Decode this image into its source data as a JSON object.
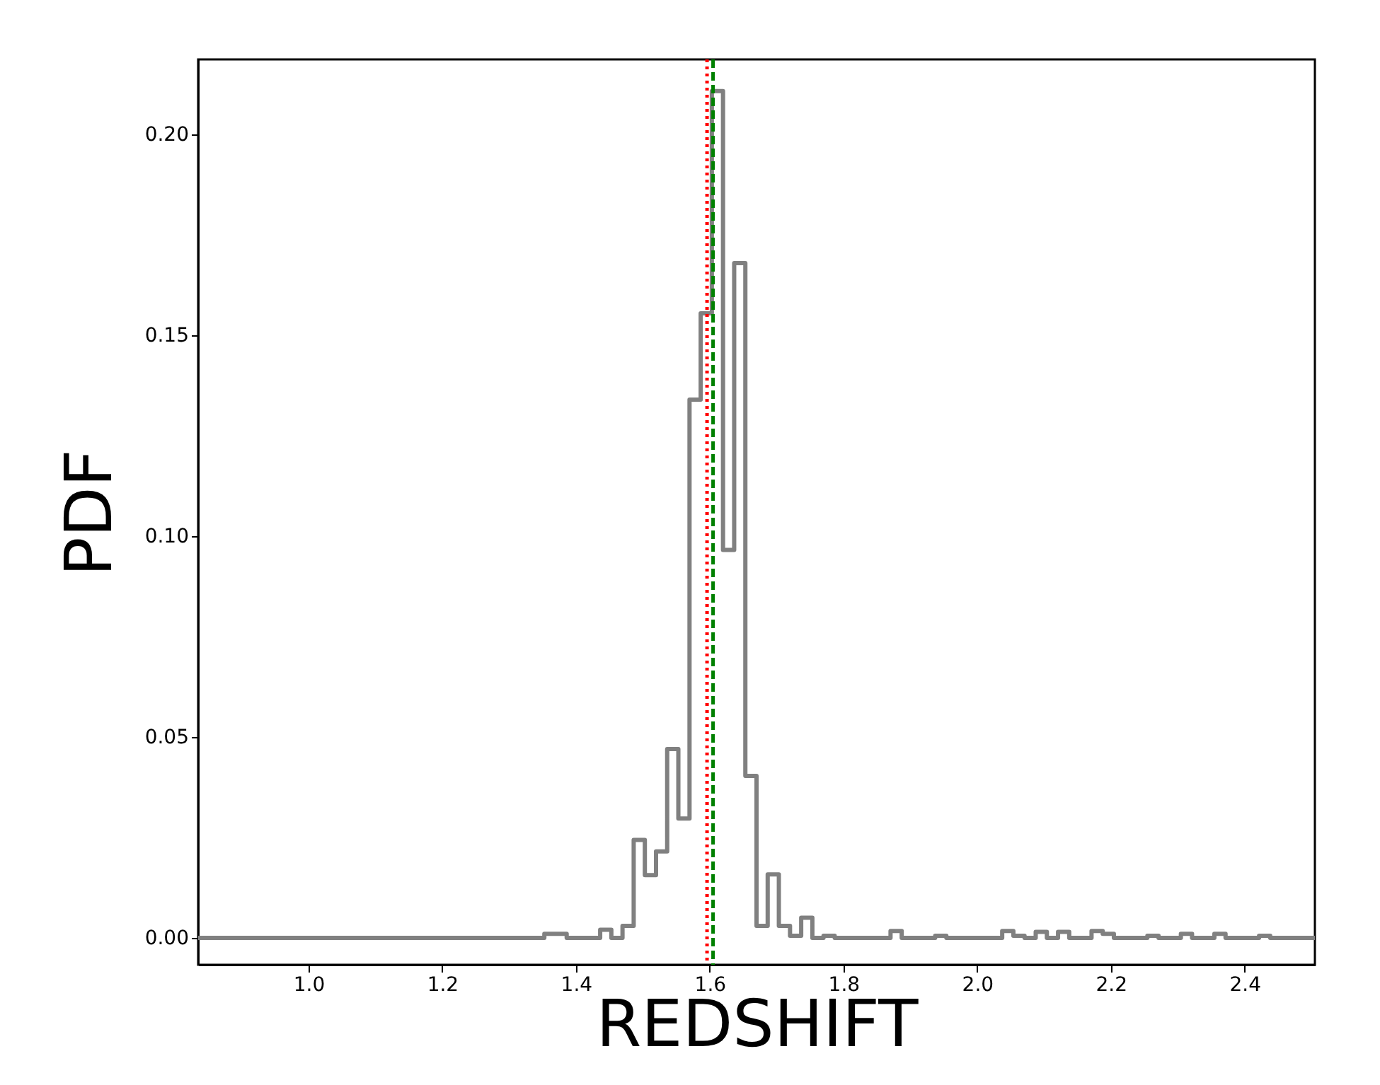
{
  "chart_data": {
    "type": "histogram",
    "xlabel": "REDSHIFT",
    "ylabel": "PDF",
    "line_style": "solid",
    "grid": false,
    "bins": [
      0.835,
      0.8517,
      0.8684,
      0.8851,
      0.9018,
      0.9185,
      0.9352,
      0.9519,
      0.9686,
      0.9853,
      1.002,
      1.0187,
      1.0354,
      1.0521,
      1.0688,
      1.0855,
      1.1022,
      1.1189,
      1.1356,
      1.1523,
      1.169,
      1.1857,
      1.2024,
      1.2191,
      1.2358,
      1.2525,
      1.2692,
      1.2859,
      1.3026,
      1.3193,
      1.336,
      1.3527,
      1.3694,
      1.3861,
      1.4028,
      1.4195,
      1.4362,
      1.4529,
      1.4696,
      1.4863,
      1.503,
      1.5197,
      1.5364,
      1.5531,
      1.5698,
      1.5865,
      1.6032,
      1.6199,
      1.6366,
      1.6533,
      1.67,
      1.6867,
      1.7034,
      1.7201,
      1.7368,
      1.7535,
      1.7702,
      1.7869,
      1.8036,
      1.8203,
      1.837,
      1.8537,
      1.8704,
      1.8871,
      1.9038,
      1.9205,
      1.9372,
      1.9539,
      1.9706,
      1.9873,
      2.004,
      2.0207,
      2.0374,
      2.0541,
      2.0708,
      2.0875,
      2.1042,
      2.1209,
      2.1376,
      2.1543,
      2.171,
      2.1877,
      2.2044,
      2.2211,
      2.2378,
      2.2545,
      2.2712,
      2.2879,
      2.3046,
      2.3213,
      2.338,
      2.3547,
      2.3714,
      2.3881,
      2.4048,
      2.4215,
      2.4382,
      2.4549,
      2.4716,
      2.4883,
      2.505
    ],
    "series": [
      {
        "color": "#808080",
        "values": [
          0,
          0,
          0,
          0,
          0,
          0,
          0,
          0,
          0,
          0,
          0,
          0,
          0,
          0,
          0,
          0,
          0,
          0,
          0,
          0,
          0,
          0,
          0,
          0,
          0,
          0,
          0,
          0,
          0,
          0,
          0,
          0.001,
          0.001,
          0,
          0,
          0,
          0.002,
          0,
          0.003,
          0.0244,
          0.0156,
          0.0215,
          0.047,
          0.0297,
          0.134,
          0.1555,
          0.2108,
          0.0966,
          0.168,
          0.0403,
          0.003,
          0.0158,
          0.003,
          0.0005,
          0.005,
          0,
          0.0005,
          0,
          0,
          0,
          0,
          0,
          0.0017,
          0,
          0,
          0,
          0.0005,
          0,
          0,
          0,
          0,
          0,
          0.0017,
          0.0005,
          0,
          0.0015,
          0,
          0.0015,
          0,
          0,
          0.0017,
          0.001,
          0,
          0,
          0,
          0.0005,
          0,
          0,
          0.001,
          0,
          0,
          0.001,
          0,
          0,
          0,
          0.0005,
          0,
          0,
          0,
          0
        ]
      }
    ],
    "xlim": [
      0.835,
      2.505
    ],
    "ylim": [
      -0.0067,
      0.2187
    ],
    "xticks": [
      {
        "value": 1.0,
        "label": "1.0"
      },
      {
        "value": 1.2,
        "label": "1.2"
      },
      {
        "value": 1.4,
        "label": "1.4"
      },
      {
        "value": 1.6,
        "label": "1.6"
      },
      {
        "value": 1.8,
        "label": "1.8"
      },
      {
        "value": 2.0,
        "label": "2.0"
      },
      {
        "value": 2.2,
        "label": "2.2"
      },
      {
        "value": 2.4,
        "label": "2.4"
      }
    ],
    "yticks": [
      {
        "value": 0,
        "label": "0.00"
      },
      {
        "value": 0.05,
        "label": "0.05"
      },
      {
        "value": 0.1,
        "label": "0.10"
      },
      {
        "value": 0.15,
        "label": "0.15"
      },
      {
        "value": 0.2,
        "label": "0.20"
      }
    ],
    "ref_lines": [
      {
        "axis": "x",
        "value": 1.596,
        "color": "#ff0000",
        "line_style": "dotted"
      },
      {
        "axis": "x",
        "value": 1.605,
        "color": "#008000",
        "line_style": "dashed"
      }
    ]
  }
}
